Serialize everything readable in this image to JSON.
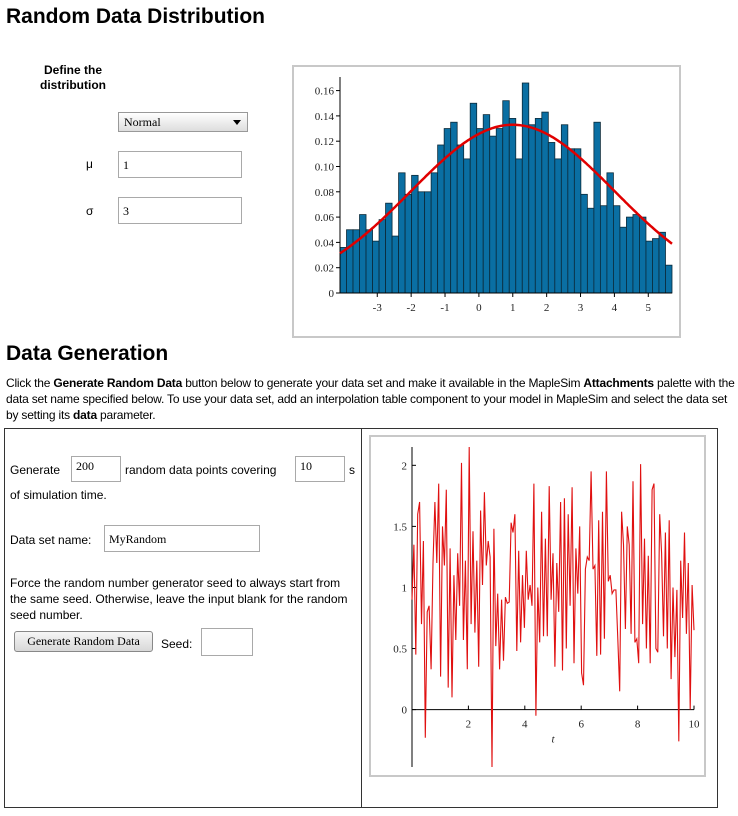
{
  "title": "Random Data Distribution",
  "define": {
    "label": "Define the distribution",
    "distribution": "Normal",
    "mu_label": "μ",
    "mu": "1",
    "sigma_label": "σ",
    "sigma": "3"
  },
  "section2": {
    "title": "Data Generation",
    "p_before": "Click the ",
    "p_b1": "Generate Random Data",
    "p_mid": " button below to generate your data set and make it available in the MapleSim ",
    "p_b2": "Attachments",
    "p_mid2": " palette with the data set name specified below. To use your data set, add an interpolation table component to your model in MapleSim and select the data set by setting its ",
    "p_b3": "data",
    "p_end": " parameter."
  },
  "form": {
    "generate_label": "Generate",
    "points": "200",
    "points_text": "random data points covering",
    "seconds": "10",
    "s_label": "s",
    "sim_time": "of simulation time.",
    "name_label": "Data set name:",
    "name": "MyRandom",
    "seed_text": "Force the random number generator seed to always start from the same seed. Otherwise, leave the input blank for the random seed number.",
    "button": "Generate Random Data",
    "seed_label": "Seed:",
    "seed": ""
  },
  "colors": {
    "bar": "#0a6fa3",
    "curve": "#e00000",
    "line": "#e01010"
  },
  "chart_data": [
    {
      "type": "bar",
      "title": "",
      "xlabel": "",
      "ylabel": "",
      "xlim": [
        -4.1,
        5.7
      ],
      "ylim": [
        0,
        0.166
      ],
      "xticks": [
        "-3",
        "-2",
        "-1",
        "0",
        "1",
        "2",
        "3",
        "4",
        "5"
      ],
      "yticks": [
        "0",
        "0.02",
        "0.04",
        "0.06",
        "0.08",
        "0.10",
        "0.12",
        "0.14",
        "0.16"
      ],
      "values": [
        0.036,
        0.05,
        0.05,
        0.062,
        0.05,
        0.041,
        0.058,
        0.071,
        0.045,
        0.095,
        0.078,
        0.093,
        0.08,
        0.08,
        0.095,
        0.117,
        0.13,
        0.135,
        0.117,
        0.106,
        0.15,
        0.13,
        0.141,
        0.124,
        0.13,
        0.152,
        0.138,
        0.106,
        0.166,
        0.133,
        0.138,
        0.143,
        0.119,
        0.106,
        0.133,
        0.114,
        0.114,
        0.078,
        0.067,
        0.135,
        0.069,
        0.095,
        0.069,
        0.052,
        0.06,
        0.062,
        0.06,
        0.041,
        0.043,
        0.048,
        0.022
      ],
      "curve": {
        "type": "normal-pdf",
        "mu": 1,
        "sigma": 3
      }
    },
    {
      "type": "line",
      "xlabel": "t",
      "ylabel": "",
      "xlim": [
        0,
        10
      ],
      "ylim": [
        -0.47,
        2.15
      ],
      "xticks": [
        "2",
        "4",
        "6",
        "8",
        "10"
      ],
      "yticks": [
        "0",
        "0.5",
        "1",
        "1.5",
        "2"
      ],
      "y": [
        0.9,
        1.35,
        0.45,
        1.6,
        1.7,
        0.7,
        1.38,
        -0.23,
        0.8,
        0.85,
        0.33,
        1.2,
        1.7,
        1.2,
        1.85,
        0.27,
        1.5,
        1.18,
        1.8,
        0.18,
        1.32,
        0.1,
        1.1,
        0.57,
        1.28,
        0.85,
        2.02,
        0.57,
        1.22,
        0.33,
        2.15,
        0.7,
        1.46,
        0.63,
        1.22,
        0.35,
        1.63,
        1.02,
        1.78,
        1.18,
        1.38,
        1.25,
        -0.47,
        1.48,
        0.52,
        0.95,
        0.33,
        0.9,
        0.4,
        0.92,
        0.87,
        0.88,
        1.53,
        1.45,
        1.6,
        0.48,
        1.3,
        0.55,
        1.1,
        0.67,
        1.3,
        0.9,
        1.02,
        0.85,
        1.85,
        -0.05,
        1.0,
        0.55,
        1.62,
        0.6,
        1.4,
        0.6,
        1.83,
        0.9,
        1.28,
        0.35,
        1.2,
        0.8,
        1.7,
        0.32,
        1.73,
        0.5,
        1.6,
        0.85,
        1.82,
        0.38,
        1.32,
        0.95,
        1.5,
        0.3,
        0.2,
        1.15,
        1.25,
        1.22,
        1.95,
        1.15,
        1.18,
        0.44,
        1.55,
        0.45,
        1.62,
        0.58,
        1.95,
        1.05,
        1.1,
        0.95,
        0.98,
        0.98,
        0.58,
        0.15,
        1.62,
        1.35,
        0.66,
        1.5,
        1.35,
        0.62,
        1.87,
        0.55,
        0.58,
        0.38,
        2.01,
        0.7,
        1.4,
        0.5,
        1.26,
        0.38,
        1.8,
        1.85,
        0.5,
        0.47,
        1.6,
        1.28,
        0.6,
        1.45,
        0.5,
        1.55,
        0.25,
        1.0,
        0.43,
        0.98,
        -0.26,
        1.22,
        0.75,
        1.45,
        0.62,
        1.2,
        0.0,
        1.02,
        0.65
      ]
    }
  ]
}
